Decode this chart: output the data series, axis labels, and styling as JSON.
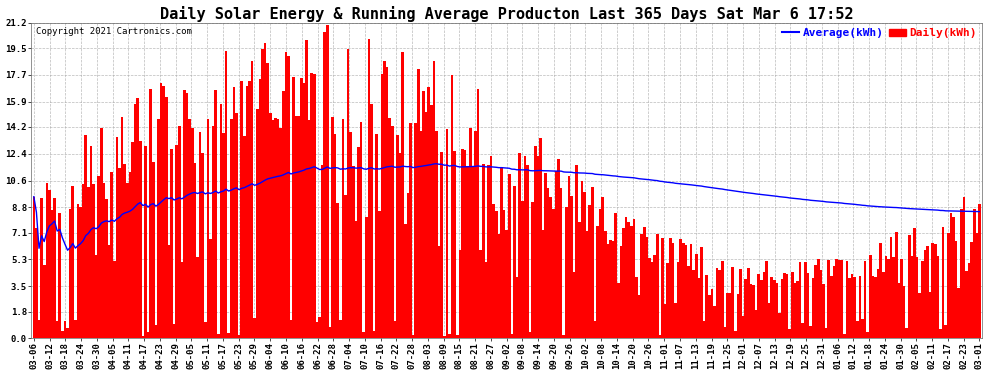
{
  "title": "Daily Solar Energy & Running Average Producton Last 365 Days Sat Mar 6 17:52",
  "copyright": "Copyright 2021 Cartronics.com",
  "legend_avg": "Average(kWh)",
  "legend_daily": "Daily(kWh)",
  "bar_color": "#ff0000",
  "avg_color": "#0000ff",
  "background_color": "#ffffff",
  "grid_color": "#aaaaaa",
  "yticks": [
    0.0,
    1.8,
    3.5,
    5.3,
    7.1,
    8.8,
    10.6,
    12.4,
    14.2,
    15.9,
    17.7,
    19.5,
    21.2
  ],
  "ylim": [
    0,
    21.2
  ],
  "xtick_labels": [
    "03-06",
    "03-12",
    "03-18",
    "03-24",
    "03-30",
    "04-05",
    "04-11",
    "04-17",
    "04-23",
    "04-29",
    "05-05",
    "05-11",
    "05-17",
    "05-23",
    "05-29",
    "06-04",
    "06-10",
    "06-16",
    "06-22",
    "06-28",
    "07-04",
    "07-10",
    "07-16",
    "07-22",
    "07-28",
    "08-03",
    "08-09",
    "08-15",
    "08-21",
    "08-27",
    "09-02",
    "09-08",
    "09-14",
    "09-20",
    "09-26",
    "10-02",
    "10-08",
    "10-14",
    "10-20",
    "10-26",
    "11-01",
    "11-07",
    "11-13",
    "11-19",
    "11-25",
    "12-01",
    "12-07",
    "12-13",
    "12-19",
    "12-25",
    "12-31",
    "01-06",
    "01-12",
    "01-18",
    "01-24",
    "01-30",
    "02-05",
    "02-11",
    "02-17",
    "02-23",
    "03-01"
  ],
  "title_fontsize": 11,
  "axis_fontsize": 6.5,
  "copyright_fontsize": 6.5,
  "legend_fontsize": 8
}
